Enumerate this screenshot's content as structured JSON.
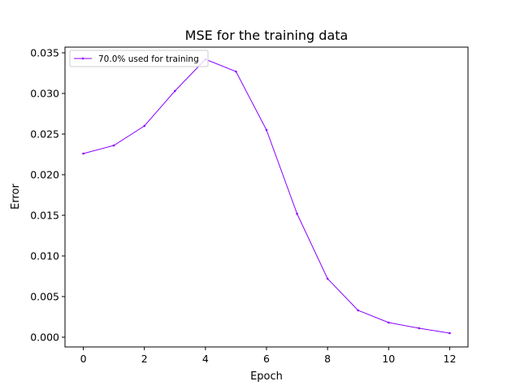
{
  "chart_data": {
    "type": "line",
    "title": "MSE for the training data",
    "xlabel": "Epoch",
    "ylabel": "Error",
    "xlim": [
      -0.6,
      12.6
    ],
    "ylim": [
      -0.0012,
      0.0357
    ],
    "xticks": [
      0,
      2,
      4,
      6,
      8,
      10,
      12
    ],
    "xtick_labels": [
      "0",
      "2",
      "4",
      "6",
      "8",
      "10",
      "12"
    ],
    "yticks": [
      0.0,
      0.005,
      0.01,
      0.015,
      0.02,
      0.025,
      0.03,
      0.035
    ],
    "ytick_labels": [
      "0.000",
      "0.005",
      "0.010",
      "0.015",
      "0.020",
      "0.025",
      "0.030",
      "0.035"
    ],
    "grid": false,
    "legend_position": "top-left",
    "series": [
      {
        "name": "70.0% used for training",
        "color": "#8b00ff",
        "x": [
          0,
          1,
          2,
          3,
          4,
          5,
          6,
          7,
          8,
          9,
          10,
          11,
          12
        ],
        "y": [
          0.0226,
          0.0236,
          0.026,
          0.0303,
          0.0342,
          0.0327,
          0.0255,
          0.0152,
          0.0072,
          0.0033,
          0.0018,
          0.0011,
          0.0005
        ]
      }
    ]
  }
}
